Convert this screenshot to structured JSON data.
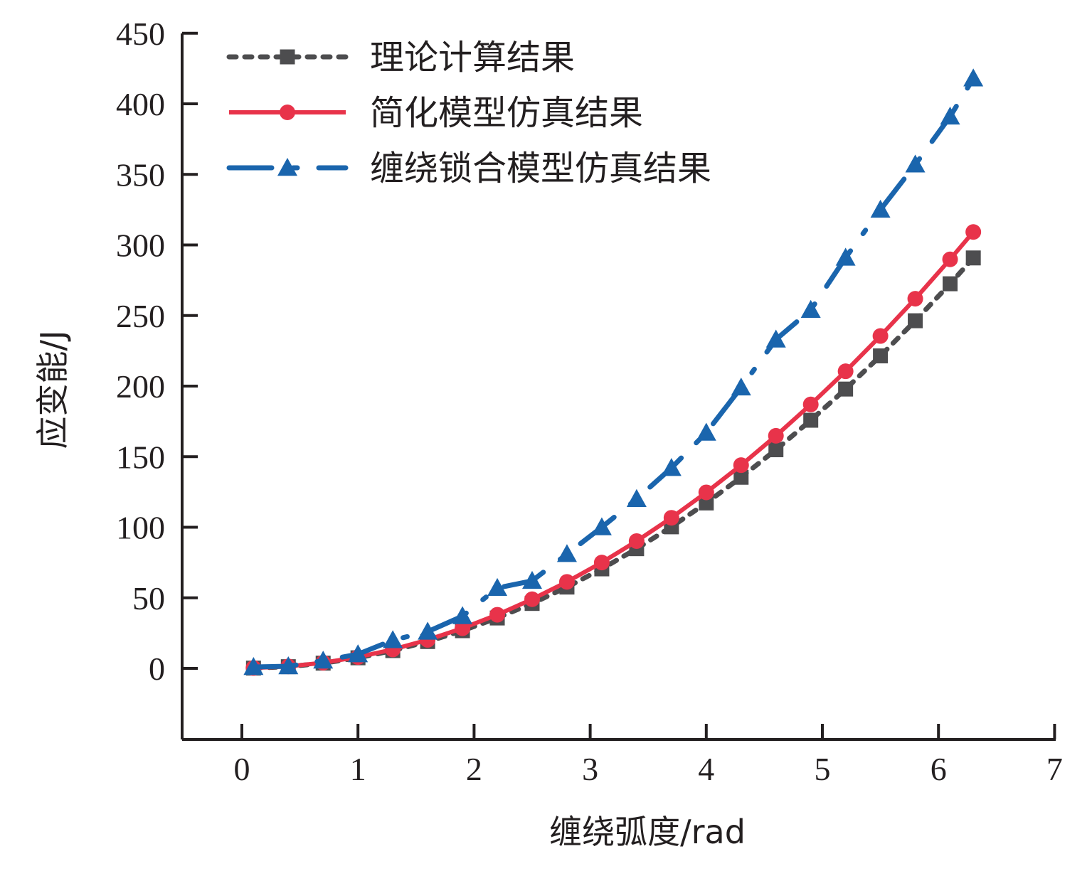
{
  "chart_data": {
    "type": "line",
    "title": "",
    "xlabel": "缠绕弧度/rad",
    "ylabel": "应变能/J",
    "xlim": [
      -0.5,
      7
    ],
    "ylim": [
      -50,
      450
    ],
    "xticks": [
      0,
      1,
      2,
      3,
      4,
      5,
      6,
      7
    ],
    "xtick_labels": [
      "0",
      "1",
      "2",
      "3",
      "4",
      "5",
      "6",
      "7"
    ],
    "yticks": [
      0,
      50,
      100,
      150,
      200,
      250,
      300,
      350,
      400,
      450
    ],
    "ytick_labels": [
      "0",
      "50",
      "100",
      "150",
      "200",
      "250",
      "300",
      "350",
      "400",
      "450"
    ],
    "grid": false,
    "legend_position": "top-left",
    "x": [
      0.1,
      0.4,
      0.7,
      1.0,
      1.3,
      1.6,
      1.9,
      2.2,
      2.5,
      2.8,
      3.1,
      3.4,
      3.7,
      4.0,
      4.3,
      4.6,
      4.9,
      5.2,
      5.5,
      5.8,
      6.1,
      6.3
    ],
    "series": [
      {
        "name": "理论计算结果",
        "color": "#4d4d4f",
        "marker": "square",
        "line_style": "dotted",
        "values": [
          0.2,
          1.2,
          3.7,
          7.5,
          12.6,
          19.0,
          26.7,
          35.7,
          46.0,
          57.6,
          70.5,
          84.8,
          100.3,
          117.2,
          135.4,
          154.9,
          175.8,
          197.9,
          221.4,
          246.3,
          272.5,
          290.8
        ]
      },
      {
        "name": "简化模型仿真结果",
        "color": "#e8334a",
        "marker": "circle",
        "line_style": "solid",
        "values": [
          0.3,
          1.4,
          4.0,
          8.0,
          13.4,
          20.2,
          28.4,
          38.0,
          49.0,
          61.3,
          75.0,
          90.2,
          106.7,
          124.7,
          144.0,
          164.8,
          187.0,
          210.5,
          235.5,
          261.9,
          289.8,
          309.2
        ]
      },
      {
        "name": "缠绕锁合模型仿真结果",
        "color": "#1a65ad",
        "marker": "triangle",
        "line_style": "dash-dot",
        "values": [
          1.0,
          1.5,
          5.5,
          10.0,
          20.0,
          26.0,
          37.0,
          57.0,
          62.0,
          81.0,
          100.0,
          120.0,
          142.0,
          167.0,
          199.0,
          233.0,
          254.0,
          291.0,
          325.0,
          357.0,
          391.0,
          418.0
        ]
      }
    ]
  }
}
